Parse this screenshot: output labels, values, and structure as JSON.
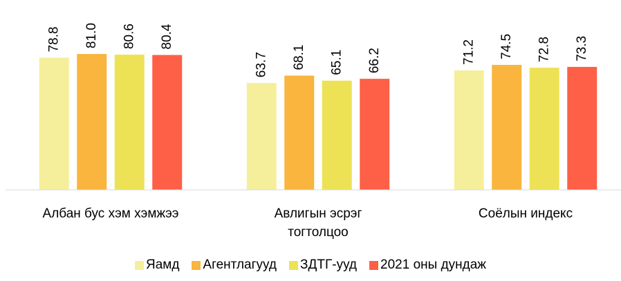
{
  "chart_data": {
    "type": "bar",
    "categories": [
      "Албан бус хэм хэмжээ",
      "Авлигын эсрэг тогтолцоо",
      "Соёлын индекс"
    ],
    "series": [
      {
        "name": "Яамд",
        "color": "#f5ef9b",
        "values": [
          78.8,
          63.7,
          71.2
        ]
      },
      {
        "name": "Агентлагууд",
        "color": "#f9b53e",
        "values": [
          81.0,
          68.1,
          74.5
        ]
      },
      {
        "name": "ЗДТГ-ууд",
        "color": "#ede255",
        "values": [
          80.6,
          65.1,
          72.8
        ]
      },
      {
        "name": "2021 оны дундаж",
        "color": "#fd6046",
        "values": [
          80.4,
          66.2,
          73.3
        ]
      }
    ],
    "value_labels": [
      [
        "78.8",
        "63.7",
        "71.2"
      ],
      [
        "81.0",
        "68.1",
        "74.5"
      ],
      [
        "80.6",
        "65.1",
        "72.8"
      ],
      [
        "80.4",
        "66.2",
        "73.3"
      ]
    ],
    "ylim": [
      0,
      100
    ],
    "legend": "bottom"
  }
}
